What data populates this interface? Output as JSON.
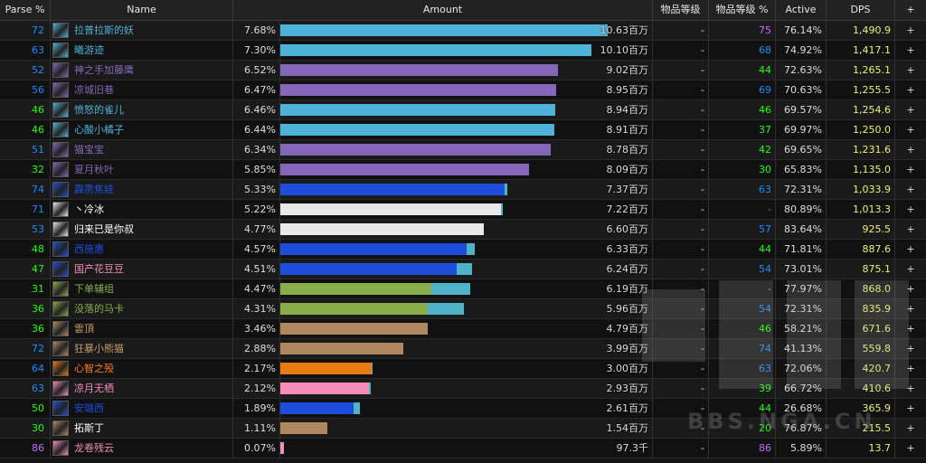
{
  "header": {
    "parse": "Parse %",
    "name": "Name",
    "amount": "Amount",
    "ilvl": "物品等级",
    "ilvl_pct": "物品等级 %",
    "active": "Active",
    "dps": "DPS",
    "plus": "+"
  },
  "colors": {
    "parse_blue": "#1a8cff",
    "parse_green": "#1eff00",
    "parse_purple": "#c070ff",
    "mage": "#4fb2d8",
    "warlock": "#8467b8",
    "shaman": "#1f4ddb",
    "priest": "#e8e8e8",
    "paladin": "#f58cba",
    "hunter": "#8aac4a",
    "warrior": "#b08860",
    "druid": "#e87a10"
  },
  "rows": [
    {
      "parse": "72",
      "name": "拉普拉斯的妖",
      "pct": "7.68%",
      "amount": "10.63百万",
      "ilvl": "-",
      "ilvl_pct": "75",
      "active": "76.14%",
      "dps": "1,490.9",
      "plus": "+",
      "color": "#4fb2d8",
      "bar": 1.0,
      "ext": 0.0,
      "parse_color": "#1a8cff",
      "ilvl_color": "#c070ff",
      "icon": "frost-mage-icon",
      "name_color": "#4fb2d8"
    },
    {
      "parse": "63",
      "name": "曦游迹",
      "pct": "7.30%",
      "amount": "10.10百万",
      "ilvl": "-",
      "ilvl_pct": "68",
      "active": "74.92%",
      "dps": "1,417.1",
      "plus": "+",
      "color": "#4fb2d8",
      "bar": 0.95,
      "ext": 0.0,
      "parse_color": "#1a8cff",
      "ilvl_color": "#1a8cff",
      "icon": "frost-mage-icon",
      "name_color": "#4fb2d8"
    },
    {
      "parse": "52",
      "name": "神之手加藤鹰",
      "pct": "6.52%",
      "amount": "9.02百万",
      "ilvl": "-",
      "ilvl_pct": "44",
      "active": "72.63%",
      "dps": "1,265.1",
      "plus": "+",
      "color": "#8467b8",
      "bar": 0.849,
      "ext": 0.0,
      "parse_color": "#1a8cff",
      "ilvl_color": "#1eff00",
      "icon": "warlock-icon",
      "name_color": "#8467b8"
    },
    {
      "parse": "56",
      "name": "凉城旧巷",
      "pct": "6.47%",
      "amount": "8.95百万",
      "ilvl": "-",
      "ilvl_pct": "69",
      "active": "70.63%",
      "dps": "1,255.5",
      "plus": "+",
      "color": "#8467b8",
      "bar": 0.842,
      "ext": 0.0,
      "parse_color": "#1a8cff",
      "ilvl_color": "#1a8cff",
      "icon": "warlock-icon",
      "name_color": "#8467b8"
    },
    {
      "parse": "46",
      "name": "愤怒的雀儿",
      "pct": "6.46%",
      "amount": "8.94百万",
      "ilvl": "-",
      "ilvl_pct": "46",
      "active": "69.57%",
      "dps": "1,254.6",
      "plus": "+",
      "color": "#4fb2d8",
      "bar": 0.841,
      "ext": 0.0,
      "parse_color": "#1eff00",
      "ilvl_color": "#1eff00",
      "icon": "frost-mage-icon",
      "name_color": "#4fb2d8"
    },
    {
      "parse": "46",
      "name": "心酸小橘子",
      "pct": "6.44%",
      "amount": "8.91百万",
      "ilvl": "-",
      "ilvl_pct": "37",
      "active": "69.97%",
      "dps": "1,250.0",
      "plus": "+",
      "color": "#4fb2d8",
      "bar": 0.838,
      "ext": 0.0,
      "parse_color": "#1eff00",
      "ilvl_color": "#1eff00",
      "icon": "frost-mage-icon",
      "name_color": "#4fb2d8"
    },
    {
      "parse": "51",
      "name": "猫宝宝",
      "pct": "6.34%",
      "amount": "8.78百万",
      "ilvl": "-",
      "ilvl_pct": "42",
      "active": "69.65%",
      "dps": "1,231.6",
      "plus": "+",
      "color": "#8467b8",
      "bar": 0.826,
      "ext": 0.0,
      "parse_color": "#1a8cff",
      "ilvl_color": "#1eff00",
      "icon": "warlock-icon",
      "name_color": "#8467b8"
    },
    {
      "parse": "32",
      "name": "夏月秋叶",
      "pct": "5.85%",
      "amount": "8.09百万",
      "ilvl": "-",
      "ilvl_pct": "30",
      "active": "65.83%",
      "dps": "1,135.0",
      "plus": "+",
      "color": "#8467b8",
      "bar": 0.761,
      "ext": 0.0,
      "parse_color": "#1eff00",
      "ilvl_color": "#1eff00",
      "icon": "warlock-icon",
      "name_color": "#8467b8"
    },
    {
      "parse": "74",
      "name": "霹雳焦娃",
      "pct": "5.33%",
      "amount": "7.37百万",
      "ilvl": "-",
      "ilvl_pct": "63",
      "active": "72.31%",
      "dps": "1,033.9",
      "plus": "+",
      "color": "#1f4ddb",
      "bar": 0.685,
      "ext": 0.008,
      "parse_color": "#1a8cff",
      "ilvl_color": "#1a8cff",
      "icon": "shaman-icon",
      "name_color": "#1f4ddb"
    },
    {
      "parse": "71",
      "name": "丶冷冰",
      "pct": "5.22%",
      "amount": "7.22百万",
      "ilvl": "-",
      "ilvl_pct": "-",
      "active": "80.89%",
      "dps": "1,013.3",
      "plus": "+",
      "color": "#e8e8e8",
      "bar": 0.674,
      "ext": 0.005,
      "parse_color": "#1a8cff",
      "ilvl_color": "#1a8cff",
      "icon": "priest-icon",
      "name_color": "#ffffff"
    },
    {
      "parse": "53",
      "name": "归来已是你叔",
      "pct": "4.77%",
      "amount": "6.60百万",
      "ilvl": "-",
      "ilvl_pct": "57",
      "active": "83.64%",
      "dps": "925.5",
      "plus": "+",
      "color": "#e8e8e8",
      "bar": 0.621,
      "ext": 0.0,
      "parse_color": "#1a8cff",
      "ilvl_color": "#1a8cff",
      "icon": "priest-icon",
      "name_color": "#ffffff"
    },
    {
      "parse": "48",
      "name": "西施惠",
      "pct": "4.57%",
      "amount": "6.33百万",
      "ilvl": "-",
      "ilvl_pct": "44",
      "active": "71.81%",
      "dps": "887.6",
      "plus": "+",
      "color": "#1f4ddb",
      "bar": 0.57,
      "ext": 0.025,
      "parse_color": "#1eff00",
      "ilvl_color": "#1eff00",
      "icon": "shaman-icon",
      "name_color": "#1f4ddb"
    },
    {
      "parse": "47",
      "name": "国产花豆豆",
      "pct": "4.51%",
      "amount": "6.24百万",
      "ilvl": "-",
      "ilvl_pct": "54",
      "active": "73.01%",
      "dps": "875.1",
      "plus": "+",
      "color": "#1f4ddb",
      "bar": 0.54,
      "ext": 0.045,
      "parse_color": "#1eff00",
      "ilvl_color": "#1a8cff",
      "icon": "paladin-icon",
      "name_color": "#f58cba"
    },
    {
      "parse": "31",
      "name": "下单辅组",
      "pct": "4.47%",
      "amount": "6.19百万",
      "ilvl": "-",
      "ilvl_pct": "-",
      "active": "77.97%",
      "dps": "868.0",
      "plus": "+",
      "color": "#8aac4a",
      "bar": 0.46,
      "ext": 0.12,
      "parse_color": "#1eff00",
      "ilvl_color": "#1eff00",
      "icon": "hunter-icon",
      "name_color": "#8aac4a"
    },
    {
      "parse": "36",
      "name": "没落的马卡",
      "pct": "4.31%",
      "amount": "5.96百万",
      "ilvl": "-",
      "ilvl_pct": "54",
      "active": "72.31%",
      "dps": "835.9",
      "plus": "+",
      "color": "#8aac4a",
      "bar": 0.45,
      "ext": 0.11,
      "parse_color": "#1eff00",
      "ilvl_color": "#1a8cff",
      "icon": "hunter-icon",
      "name_color": "#8aac4a"
    },
    {
      "parse": "36",
      "name": "雲頂",
      "pct": "3.46%",
      "amount": "4.79百万",
      "ilvl": "-",
      "ilvl_pct": "46",
      "active": "58.21%",
      "dps": "671.6",
      "plus": "+",
      "color": "#b08860",
      "bar": 0.45,
      "ext": 0.0,
      "parse_color": "#1eff00",
      "ilvl_color": "#1eff00",
      "icon": "warrior-icon",
      "name_color": "#c69b6d"
    },
    {
      "parse": "72",
      "name": "狂暴小熊猫",
      "pct": "2.88%",
      "amount": "3.99百万",
      "ilvl": "-",
      "ilvl_pct": "74",
      "active": "41.13%",
      "dps": "559.8",
      "plus": "+",
      "color": "#b08860",
      "bar": 0.375,
      "ext": 0.0,
      "parse_color": "#1a8cff",
      "ilvl_color": "#1a8cff",
      "icon": "warrior-icon",
      "name_color": "#c69b6d"
    },
    {
      "parse": "64",
      "name": "心智之殁",
      "pct": "2.17%",
      "amount": "3.00百万",
      "ilvl": "-",
      "ilvl_pct": "63",
      "active": "72.06%",
      "dps": "420.7",
      "plus": "+",
      "color": "#e87a10",
      "bar": 0.278,
      "ext": 0.004,
      "parse_color": "#1a8cff",
      "ilvl_color": "#1a8cff",
      "icon": "druid-icon",
      "name_color": "#ff7d0a"
    },
    {
      "parse": "63",
      "name": "凉月无栖",
      "pct": "2.12%",
      "amount": "2.93百万",
      "ilvl": "-",
      "ilvl_pct": "39",
      "active": "66.72%",
      "dps": "410.6",
      "plus": "+",
      "color": "#f58cba",
      "bar": 0.272,
      "ext": 0.004,
      "parse_color": "#1a8cff",
      "ilvl_color": "#1eff00",
      "icon": "paladin-icon",
      "name_color": "#f58cba"
    },
    {
      "parse": "50",
      "name": "安璐西",
      "pct": "1.89%",
      "amount": "2.61百万",
      "ilvl": "-",
      "ilvl_pct": "44",
      "active": "26.68%",
      "dps": "365.9",
      "plus": "+",
      "color": "#1f4ddb",
      "bar": 0.225,
      "ext": 0.018,
      "parse_color": "#1eff00",
      "ilvl_color": "#1eff00",
      "icon": "shaman-icon",
      "name_color": "#1f4ddb"
    },
    {
      "parse": "30",
      "name": "拓斯丁",
      "pct": "1.11%",
      "amount": "1.54百万",
      "ilvl": "-",
      "ilvl_pct": "20",
      "active": "76.87%",
      "dps": "215.5",
      "plus": "+",
      "color": "#b08860",
      "bar": 0.145,
      "ext": 0.0,
      "parse_color": "#1eff00",
      "ilvl_color": "#1eff00",
      "icon": "warrior-icon",
      "name_color": "#ffffff"
    },
    {
      "parse": "86",
      "name": "龙卷残云",
      "pct": "0.07%",
      "amount": "97.3千",
      "ilvl": "-",
      "ilvl_pct": "86",
      "active": "5.89%",
      "dps": "13.7",
      "plus": "+",
      "color": "#f58cba",
      "bar": 0.01,
      "ext": 0.0,
      "parse_color": "#c070ff",
      "ilvl_color": "#c070ff",
      "icon": "paladin-icon",
      "name_color": "#f58cba"
    }
  ],
  "watermark": {
    "text": "BBS.NGA.CN"
  }
}
